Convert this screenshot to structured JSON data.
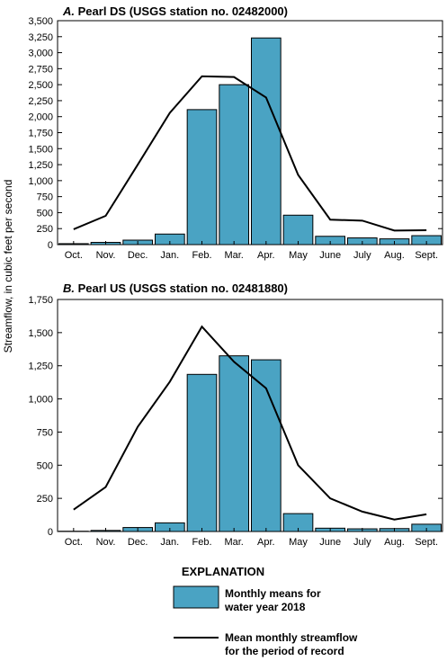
{
  "figure": {
    "ylabel": "Streamflow, in cubic feet per second",
    "colors": {
      "bar_fill": "#4aa3c3",
      "bar_stroke": "#000000",
      "line": "#000000"
    }
  },
  "chart_data": [
    {
      "type": "bar",
      "panel_letter": "A.",
      "title": "Pearl DS (USGS station no. 02482000)",
      "categories": [
        "Oct.",
        "Nov.",
        "Dec.",
        "Jan.",
        "Feb.",
        "Mar.",
        "Apr.",
        "May",
        "June",
        "July",
        "Aug.",
        "Sept."
      ],
      "series": [
        {
          "name": "Monthly means for water year 2018",
          "kind": "bar",
          "values": [
            15,
            35,
            70,
            165,
            2110,
            2500,
            3230,
            460,
            130,
            105,
            90,
            140
          ]
        },
        {
          "name": "Mean monthly streamflow for the period of record",
          "kind": "line",
          "values": [
            240,
            450,
            1250,
            2060,
            2630,
            2620,
            2300,
            1090,
            390,
            375,
            220,
            225
          ]
        }
      ],
      "ylim": [
        0,
        3500
      ],
      "yticks": [
        0,
        250,
        500,
        750,
        1000,
        1250,
        1500,
        1750,
        2000,
        2250,
        2500,
        2750,
        3000,
        3250,
        3500
      ],
      "ytick_labels": [
        "0",
        "250",
        "500",
        "750",
        "1,000",
        "1,250",
        "1,500",
        "1,750",
        "2,000",
        "2,250",
        "2,500",
        "2,750",
        "3,000",
        "3,250",
        "3,500"
      ]
    },
    {
      "type": "bar",
      "panel_letter": "B.",
      "title": "Pearl US (USGS station no. 02481880)",
      "categories": [
        "Oct.",
        "Nov.",
        "Dec.",
        "Jan.",
        "Feb.",
        "Mar.",
        "Apr.",
        "May",
        "June",
        "July",
        "Aug.",
        "Sept."
      ],
      "series": [
        {
          "name": "Monthly means for water year 2018",
          "kind": "bar",
          "values": [
            2,
            8,
            30,
            65,
            1185,
            1325,
            1295,
            135,
            25,
            20,
            22,
            55
          ]
        },
        {
          "name": "Mean monthly streamflow for the period of record",
          "kind": "line",
          "values": [
            165,
            335,
            790,
            1130,
            1545,
            1280,
            1080,
            500,
            250,
            150,
            90,
            130
          ]
        }
      ],
      "ylim": [
        0,
        1750
      ],
      "yticks": [
        0,
        250,
        500,
        750,
        1000,
        1250,
        1500,
        1750
      ],
      "ytick_labels": [
        "0",
        "250",
        "500",
        "750",
        "1,000",
        "1,250",
        "1,500",
        "1,750"
      ]
    }
  ],
  "explanation": {
    "heading": "EXPLANATION",
    "bar_label_line1": "Monthly means for",
    "bar_label_line2": "water year 2018",
    "line_label_line1": "Mean monthly streamflow",
    "line_label_line2": "for the period of record"
  }
}
